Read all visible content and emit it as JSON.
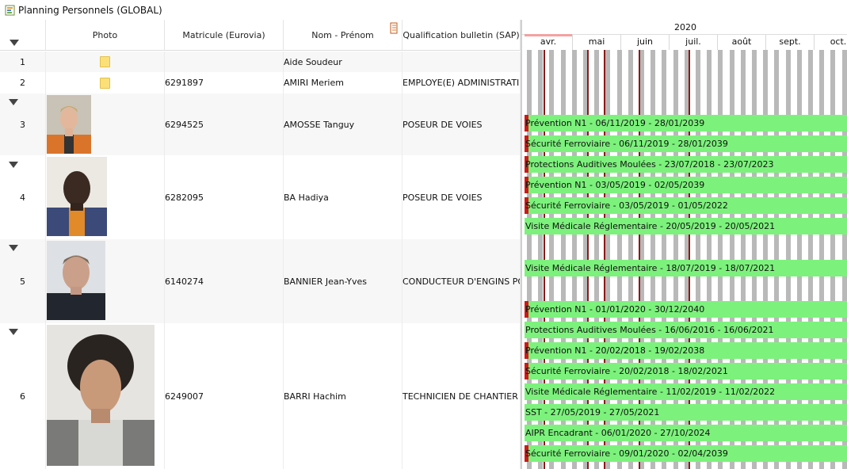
{
  "window": {
    "title": "Planning Personnels (GLOBAL)"
  },
  "columns": {
    "photo": "Photo",
    "matricule": "Matricule (Eurovia)",
    "nom": "Nom - Prénom",
    "qualif": "Qualification bulletin (SAP)"
  },
  "rows": [
    {
      "num": "1",
      "matricule": "",
      "nom": "Aide Soudeur",
      "qualif": ""
    },
    {
      "num": "2",
      "matricule": "6291897",
      "nom": "AMIRI Meriem",
      "qualif": "EMPLOYE(E) ADMINISTRATIF("
    },
    {
      "num": "3",
      "matricule": "6294525",
      "nom": "AMOSSE Tanguy",
      "qualif": "POSEUR DE VOIES"
    },
    {
      "num": "4",
      "matricule": "6282095",
      "nom": "BA Hadiya",
      "qualif": "POSEUR DE VOIES"
    },
    {
      "num": "5",
      "matricule": "6140274",
      "nom": "BANNIER Jean-Yves",
      "qualif": "CONDUCTEUR D'ENGINS POSE"
    },
    {
      "num": "6",
      "matricule": "6249007",
      "nom": "BARRI Hachim",
      "qualif": "TECHNICIEN DE CHANTIER"
    }
  ],
  "gantt": {
    "year": "2020",
    "months": [
      "avr.",
      "mai",
      "juin",
      "juil.",
      "août",
      "sept.",
      "oct."
    ],
    "bars": [
      "Prévention N1 - 06/11/2019 - 28/01/2039",
      "Sécurité Ferroviaire - 06/11/2019 - 28/01/2039",
      "Protections Auditives Moulées - 23/07/2018 - 23/07/2023",
      "Prévention N1 - 03/05/2019 - 02/05/2039",
      "Sécurité Ferroviaire - 03/05/2019 - 01/05/2022",
      "Visite Médicale Réglementaire - 20/05/2019 - 20/05/2021",
      "Visite Médicale Réglementaire - 18/07/2019 - 18/07/2021",
      "Prévention N1 - 01/01/2020 - 30/12/2040",
      "Protections Auditives Moulées - 16/06/2016 - 16/06/2021",
      "Prévention N1 - 20/02/2018 - 19/02/2038",
      "Sécurité Ferroviaire - 20/02/2018 - 18/02/2021",
      "Visite Médicale Réglementaire - 11/02/2019 - 11/02/2022",
      "SST - 27/05/2019 - 27/05/2021",
      "AIPR Encadrant - 06/01/2020 - 27/10/2024",
      "Sécurité Ferroviaire - 09/01/2020 - 02/04/2039"
    ],
    "bar_red": [
      true,
      true,
      true,
      true,
      true,
      false,
      false,
      true,
      false,
      true,
      true,
      false,
      false,
      false,
      true
    ]
  },
  "icons": {
    "window": "planning-icon",
    "sort": "column-chooser-icon",
    "expand": "collapse-triangle-icon",
    "folder": "folder-icon",
    "photo": "employee-photo"
  }
}
